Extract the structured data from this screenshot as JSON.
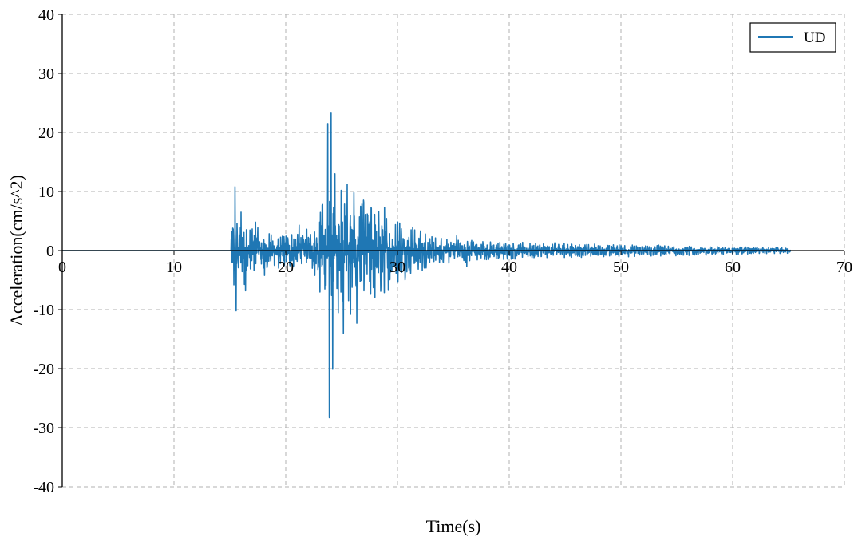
{
  "chart_data": {
    "type": "line",
    "title": "",
    "xlabel": "Time(s)",
    "ylabel": "Acceleration(cm/s^2)",
    "xlim": [
      0,
      70
    ],
    "ylim": [
      -40,
      40
    ],
    "xticks": [
      0,
      10,
      20,
      30,
      40,
      50,
      60,
      70
    ],
    "yticks": [
      -40,
      -30,
      -20,
      -10,
      0,
      10,
      20,
      30,
      40
    ],
    "grid": true,
    "legend_position": "top-right",
    "series": [
      {
        "name": "UD",
        "color": "#1f77b4",
        "duration": 65.2,
        "onset_time": 15.1,
        "sample_interval": 0.02,
        "key_points": [
          {
            "x": 15.2,
            "y": 3.2
          },
          {
            "x": 15.35,
            "y": -5.8
          },
          {
            "x": 15.45,
            "y": 10.8
          },
          {
            "x": 15.55,
            "y": -10.2
          },
          {
            "x": 16.0,
            "y": 6.5
          },
          {
            "x": 16.4,
            "y": -6.8
          },
          {
            "x": 17.3,
            "y": 4.8
          },
          {
            "x": 18.1,
            "y": -4.2
          },
          {
            "x": 21.2,
            "y": 4.3
          },
          {
            "x": 22.6,
            "y": -4.2
          },
          {
            "x": 23.3,
            "y": 7.8
          },
          {
            "x": 23.5,
            "y": -6.5
          },
          {
            "x": 23.75,
            "y": 21.5
          },
          {
            "x": 23.9,
            "y": -28.3
          },
          {
            "x": 24.05,
            "y": 23.4
          },
          {
            "x": 24.2,
            "y": -20.1
          },
          {
            "x": 24.4,
            "y": 13.0
          },
          {
            "x": 24.7,
            "y": -10.5
          },
          {
            "x": 24.95,
            "y": 10.2
          },
          {
            "x": 25.15,
            "y": -14.0
          },
          {
            "x": 25.5,
            "y": 11.2
          },
          {
            "x": 25.8,
            "y": -10.8
          },
          {
            "x": 26.1,
            "y": 9.8
          },
          {
            "x": 26.35,
            "y": -12.3
          },
          {
            "x": 26.7,
            "y": 7.5
          },
          {
            "x": 27.0,
            "y": -6.8
          },
          {
            "x": 27.3,
            "y": 6.2
          },
          {
            "x": 27.6,
            "y": -7.4
          },
          {
            "x": 28.6,
            "y": 4.2
          },
          {
            "x": 29.4,
            "y": -3.6
          },
          {
            "x": 32.5,
            "y": 2.8
          },
          {
            "x": 35.3,
            "y": 2.5
          },
          {
            "x": 36.2,
            "y": -2.7
          }
        ]
      }
    ]
  }
}
